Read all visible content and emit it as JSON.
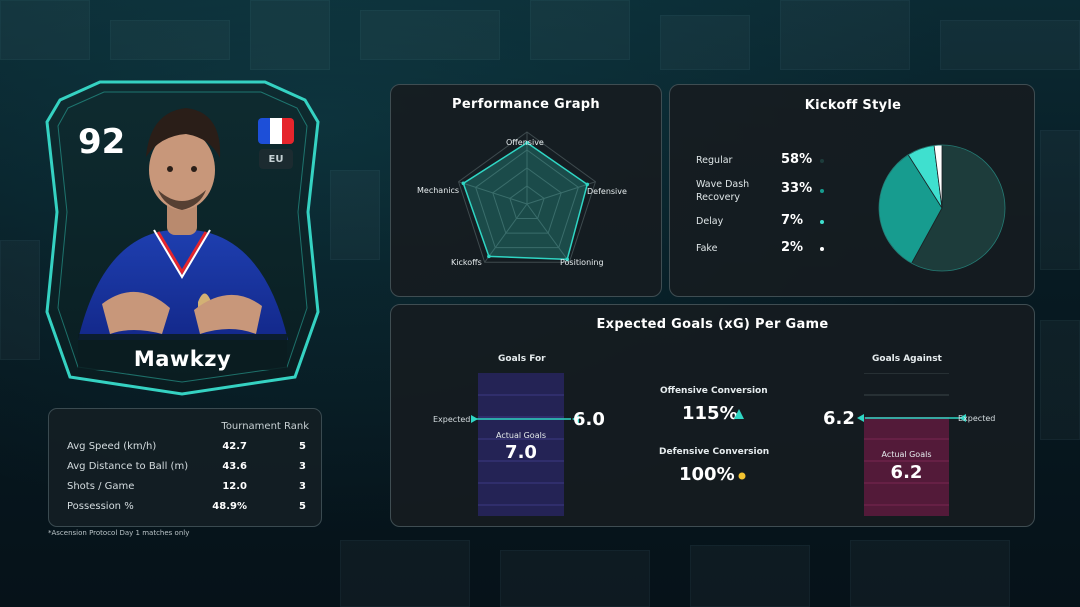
{
  "colors": {
    "accent": "#2fd6c4",
    "against": "#b0306a",
    "for": "#2e2a78",
    "yellow": "#f4c430",
    "flag_blue": "#1d4fd8",
    "flag_white": "#ffffff",
    "flag_red": "#e5252c"
  },
  "player": {
    "rating": "92",
    "region": "EU",
    "name": "Mawkzy",
    "flag_icon": "france-flag-icon"
  },
  "stats": {
    "header": "Tournament Rank",
    "rows": [
      {
        "label": "Avg Speed (km/h)",
        "value": "42.7",
        "rank": "5"
      },
      {
        "label": "Avg Distance to Ball (m)",
        "value": "43.6",
        "rank": "3"
      },
      {
        "label": "Shots / Game",
        "value": "12.0",
        "rank": "3"
      },
      {
        "label": "Possession %",
        "value": "48.9%",
        "rank": "5"
      }
    ],
    "footnote": "*Ascension Protocol Day 1 matches only"
  },
  "performance": {
    "title": "Performance Graph",
    "axes": [
      "Offensive",
      "Defensive",
      "Positioning",
      "Kickoffs",
      "Mechanics"
    ],
    "values": [
      0.85,
      0.88,
      0.95,
      0.9,
      0.93
    ]
  },
  "kickoff": {
    "title": "Kickoff Style",
    "rows": [
      {
        "label_lines": [
          "Regular"
        ],
        "value": "58%",
        "share": 58,
        "color": "#1d3c3b"
      },
      {
        "label_lines": [
          "Wave Dash",
          "Recovery"
        ],
        "value": "33%",
        "share": 33,
        "color": "#179c8f"
      },
      {
        "label_lines": [
          "Delay"
        ],
        "value": "7%",
        "share": 7,
        "color": "#3fe0cf"
      },
      {
        "label_lines": [
          "Fake"
        ],
        "value": "2%",
        "share": 2,
        "color": "#ffffff"
      }
    ]
  },
  "xg": {
    "title": "Expected Goals (xG) Per Game",
    "goals_for": {
      "title": "Goals For",
      "expected_label": "Expected",
      "expected_value": "6.0",
      "actual_label": "Actual Goals",
      "actual_value": "7.0",
      "expected": 6.0,
      "actual": 7.0
    },
    "goals_against": {
      "title": "Goals Against",
      "expected_label": "Expected",
      "expected_value": "6.2",
      "actual_label": "Actual Goals",
      "actual_value": "6.2",
      "expected": 6.2,
      "actual": 6.2
    },
    "offensive": {
      "label": "Offensive Conversion",
      "value": "115%",
      "icon": "triangle-up-icon"
    },
    "defensive": {
      "label": "Defensive Conversion",
      "value": "100%",
      "icon": "yellow-dot-icon"
    }
  }
}
